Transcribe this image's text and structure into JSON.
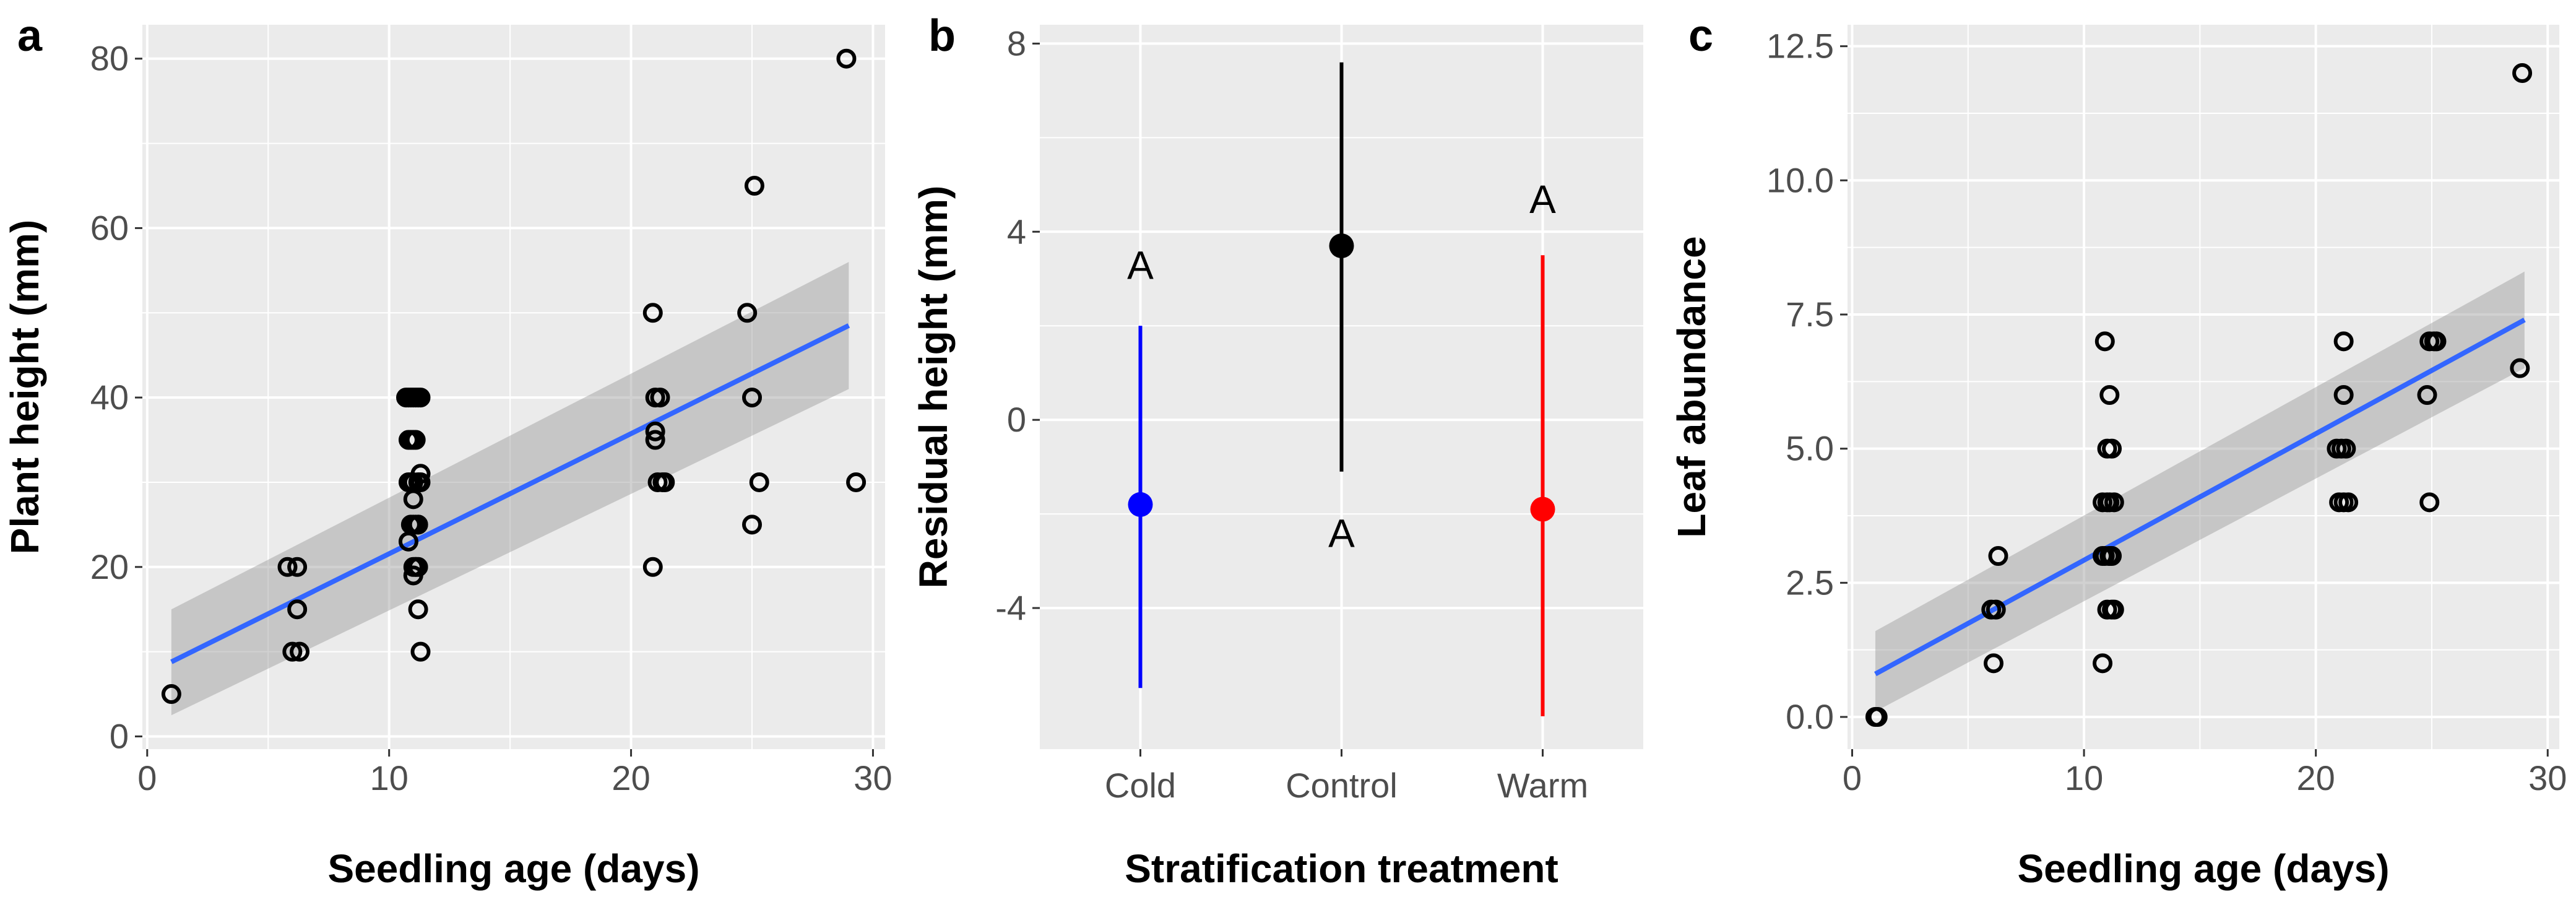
{
  "chart_data": [
    {
      "panel": "a",
      "type": "scatter",
      "xlabel": "Seedling age (days)",
      "ylabel": "Plant height (mm)",
      "xlim": [
        -0.2,
        30.5
      ],
      "ylim": [
        -1.5,
        84
      ],
      "xticks": [
        0,
        10,
        20,
        30
      ],
      "yticks": [
        0,
        20,
        40,
        60,
        80
      ],
      "x": [
        1,
        5.8,
        6.2,
        6.2,
        6.0,
        6.3,
        10.7,
        10.8,
        10.9,
        11.0,
        11.1,
        11.2,
        11.3,
        10.8,
        10.9,
        11.0,
        11.1,
        10.8,
        10.9,
        11.0,
        11.2,
        11.3,
        11.0,
        11.2,
        10.9,
        11.0,
        11.1,
        11.2,
        11.3,
        10.8,
        11.1,
        11.2,
        11.0,
        11.1,
        11.0,
        11.2,
        11.3,
        20.9,
        21.0,
        21.2,
        21.3,
        21.0,
        21.0,
        21.1,
        21.4,
        20.9,
        24.8,
        25.1,
        25.0,
        25.3,
        25.0,
        28.9,
        29.3
      ],
      "y": [
        5,
        20,
        20,
        15,
        10,
        10,
        40,
        40,
        40,
        40,
        40,
        40,
        40,
        35,
        35,
        35,
        35,
        30,
        30,
        30,
        30,
        30,
        28,
        25,
        25,
        25,
        25,
        25,
        31,
        23,
        20,
        20,
        20,
        20,
        19,
        15,
        10,
        50,
        40,
        40,
        30,
        35,
        36,
        30,
        30,
        20,
        50,
        65,
        40,
        30,
        25,
        80,
        30
      ],
      "fit": {
        "method": "lm",
        "x": [
          1,
          29
        ],
        "y": [
          8.8,
          48.5
        ],
        "ci_lower": [
          2.5,
          41
        ],
        "ci_upper": [
          15,
          56
        ]
      }
    },
    {
      "panel": "b",
      "type": "pointrange",
      "xlabel": "Stratification treatment",
      "ylabel": "Residual height (mm)",
      "categories": [
        "Cold",
        "Control",
        "Warm"
      ],
      "means": [
        -1.8,
        3.7,
        -1.9
      ],
      "lower": [
        -5.7,
        -1.1,
        -6.3
      ],
      "upper": [
        2.0,
        7.6,
        3.5
      ],
      "colors": [
        "#0000ff",
        "#000000",
        "#ff0000"
      ],
      "group_letters": [
        "A",
        "A",
        "A"
      ],
      "letter_y": [
        3.3,
        -2.4,
        4.7
      ],
      "ylim": [
        -7.0,
        8.4
      ],
      "yticks": [
        -4,
        0,
        4,
        8
      ],
      "ytick_labels": [
        "-4",
        "0",
        "4",
        "8"
      ]
    },
    {
      "panel": "c",
      "type": "scatter",
      "xlabel": "Seedling age (days)",
      "ylabel": "Leaf abundance",
      "xlim": [
        -0.2,
        30.5
      ],
      "ylim": [
        -0.6,
        12.9
      ],
      "xticks": [
        0,
        10,
        20,
        30
      ],
      "yticks": [
        0,
        2.5,
        5,
        7.5,
        10,
        12.5
      ],
      "ytick_labels": [
        "0.0",
        "2.5",
        "5.0",
        "7.5",
        "10.0",
        "12.5"
      ],
      "x": [
        1,
        1.1,
        6,
        6.2,
        6.3,
        6.1,
        10.9,
        11.1,
        11.0,
        11.2,
        10.8,
        11.0,
        11.1,
        11.3,
        11.1,
        11.2,
        10.8,
        11.0,
        11.2,
        11.3,
        10.9,
        11.1,
        10.8,
        21.2,
        21.2,
        20.9,
        21.1,
        21.3,
        21.0,
        21.2,
        21.4,
        24.9,
        25.1,
        24.8,
        25.2,
        24.9,
        28.8,
        28.9
      ],
      "y": [
        0,
        0,
        2,
        2,
        3,
        1,
        7,
        6,
        5,
        5,
        4,
        4,
        4,
        4,
        3,
        3,
        3,
        2,
        2,
        2,
        3,
        3,
        1,
        7,
        6,
        5,
        5,
        5,
        4,
        4,
        4,
        7,
        7,
        6,
        7,
        4,
        6.5,
        12
      ],
      "fit": {
        "method": "lm",
        "x": [
          1,
          29
        ],
        "y": [
          0.8,
          7.4
        ],
        "ci_lower": [
          0.1,
          6.5
        ],
        "ci_upper": [
          1.6,
          8.3
        ]
      }
    }
  ]
}
